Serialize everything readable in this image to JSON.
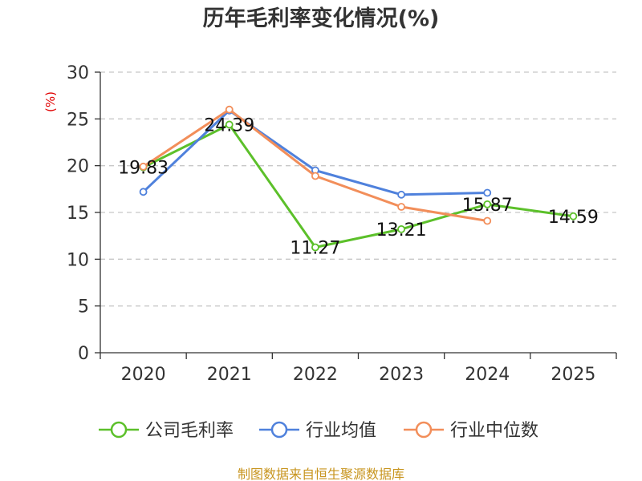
{
  "chart_data": {
    "type": "line",
    "title": "历年毛利率变化情况(%)",
    "xlabel": "",
    "ylabel": "(%)",
    "ylim": [
      0,
      30
    ],
    "yticks": [
      0,
      5,
      10,
      15,
      20,
      25,
      30
    ],
    "grid": true,
    "legend_position": "bottom",
    "categories": [
      "2020",
      "2021",
      "2022",
      "2023",
      "2024",
      "2025"
    ],
    "series": [
      {
        "name": "公司毛利率",
        "color": "#5cc02a",
        "values": [
          19.83,
          24.39,
          11.27,
          13.21,
          15.87,
          14.59
        ],
        "labels": [
          "19.83",
          "24.39",
          "11.27",
          "13.21",
          "15.87",
          "14.59"
        ]
      },
      {
        "name": "行业均值",
        "color": "#4f81dc",
        "values": [
          17.2,
          25.9,
          19.5,
          16.9,
          17.1,
          null
        ]
      },
      {
        "name": "行业中位数",
        "color": "#f28e5a",
        "values": [
          19.9,
          26.0,
          18.9,
          15.6,
          14.1,
          null
        ]
      }
    ],
    "source": "制图数据来自恒生聚源数据库"
  }
}
